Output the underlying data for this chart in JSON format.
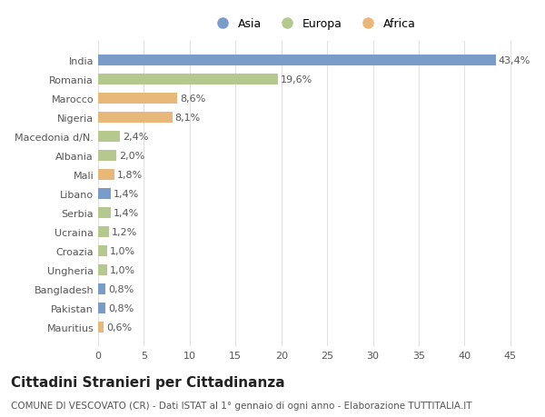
{
  "categories": [
    "India",
    "Romania",
    "Marocco",
    "Nigeria",
    "Macedonia d/N.",
    "Albania",
    "Mali",
    "Libano",
    "Serbia",
    "Ucraina",
    "Croazia",
    "Ungheria",
    "Bangladesh",
    "Pakistan",
    "Mauritius"
  ],
  "values": [
    43.4,
    19.6,
    8.6,
    8.1,
    2.4,
    2.0,
    1.8,
    1.4,
    1.4,
    1.2,
    1.0,
    1.0,
    0.8,
    0.8,
    0.6
  ],
  "labels": [
    "43,4%",
    "19,6%",
    "8,6%",
    "8,1%",
    "2,4%",
    "2,0%",
    "1,8%",
    "1,4%",
    "1,4%",
    "1,2%",
    "1,0%",
    "1,0%",
    "0,8%",
    "0,8%",
    "0,6%"
  ],
  "colors": [
    "#7a9cc9",
    "#b5c98e",
    "#e8b87a",
    "#e8b87a",
    "#b5c98e",
    "#b5c98e",
    "#e8b87a",
    "#7a9cc9",
    "#b5c98e",
    "#b5c98e",
    "#b5c98e",
    "#b5c98e",
    "#7a9cc9",
    "#7a9cc9",
    "#e8b87a"
  ],
  "legend_labels": [
    "Asia",
    "Europa",
    "Africa"
  ],
  "legend_colors": [
    "#7a9cc9",
    "#b5c98e",
    "#e8b87a"
  ],
  "title": "Cittadini Stranieri per Cittadinanza",
  "subtitle": "COMUNE DI VESCOVATO (CR) - Dati ISTAT al 1° gennaio di ogni anno - Elaborazione TUTTITALIA.IT",
  "xlim": [
    0,
    47
  ],
  "xticks": [
    0,
    5,
    10,
    15,
    20,
    25,
    30,
    35,
    40,
    45
  ],
  "bg_color": "#ffffff",
  "bar_height": 0.55,
  "label_fontsize": 8,
  "tick_fontsize": 8,
  "title_fontsize": 11,
  "subtitle_fontsize": 7.5
}
